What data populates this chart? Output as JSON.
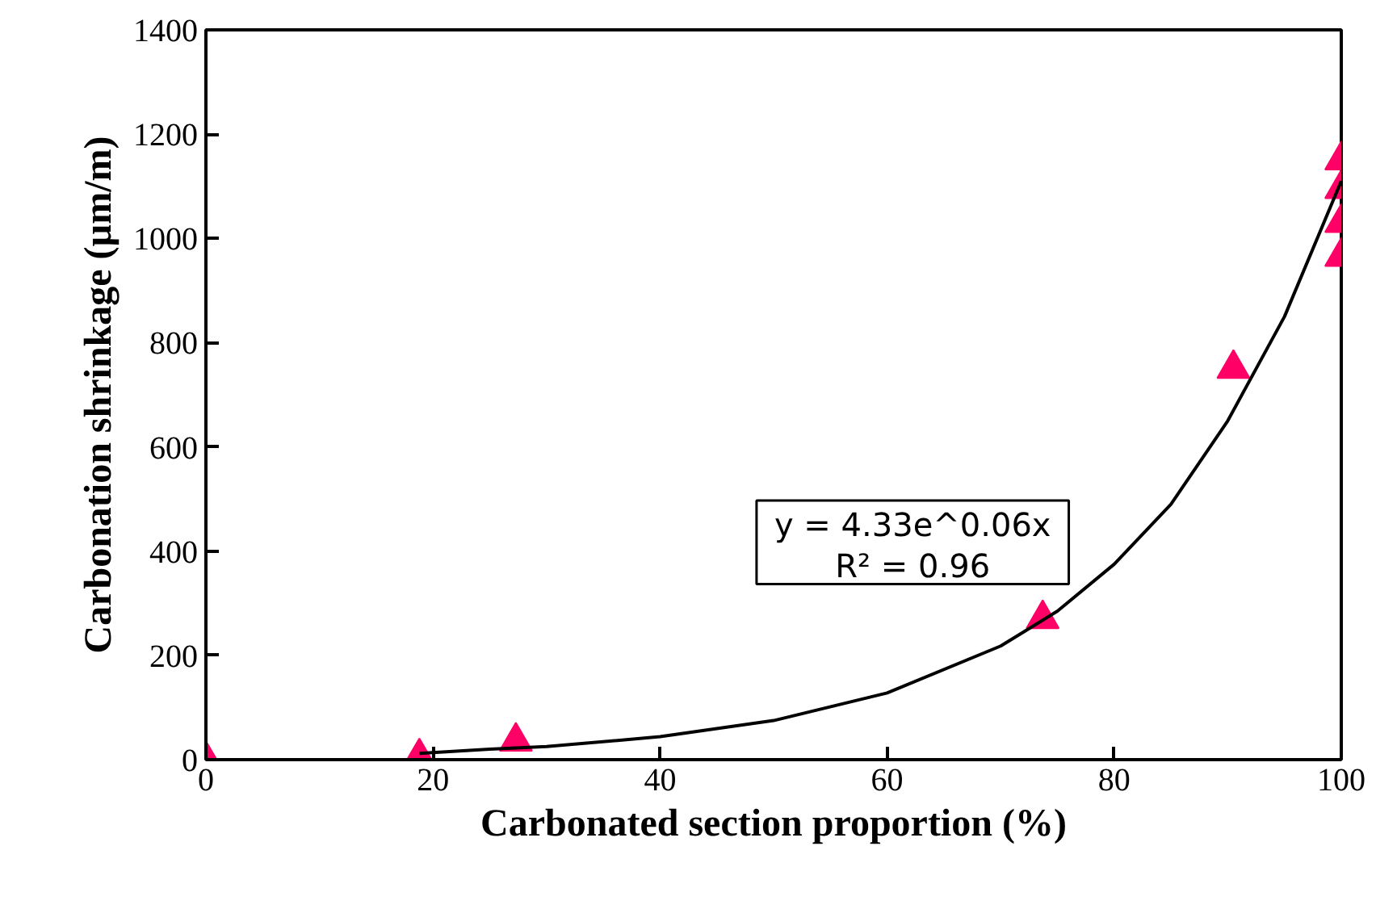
{
  "chart_data": {
    "type": "scatter",
    "xlabel": "Carbonated section proportion (%)",
    "ylabel": "Carbonation shrinkage (µm/m)",
    "xlim": [
      0,
      100
    ],
    "ylim": [
      0,
      1400
    ],
    "xticks": [
      0,
      20,
      40,
      60,
      80,
      100
    ],
    "yticks": [
      0,
      200,
      400,
      600,
      800,
      1000,
      1200,
      1400
    ],
    "grid": false,
    "marker": "triangle",
    "series": [
      {
        "color": "#ff0066",
        "x": [
          0,
          18.8,
          27.3,
          73.7,
          90.5,
          100,
          100,
          100,
          100
        ],
        "values": [
          0,
          5,
          35,
          270,
          750,
          1150,
          1095,
          1030,
          965
        ]
      },
      {
        "type": "line",
        "color": "#000000",
        "marker": "none",
        "x": [
          18.8,
          25,
          30,
          40,
          50,
          60,
          70,
          75,
          80,
          85,
          90,
          95,
          100
        ],
        "values": [
          12,
          20,
          25,
          44,
          75,
          128,
          218,
          285,
          375,
          490,
          650,
          850,
          1110
        ]
      }
    ],
    "annotations": [
      "y = 4.33e^0.06x",
      "R² = 0.96"
    ]
  }
}
